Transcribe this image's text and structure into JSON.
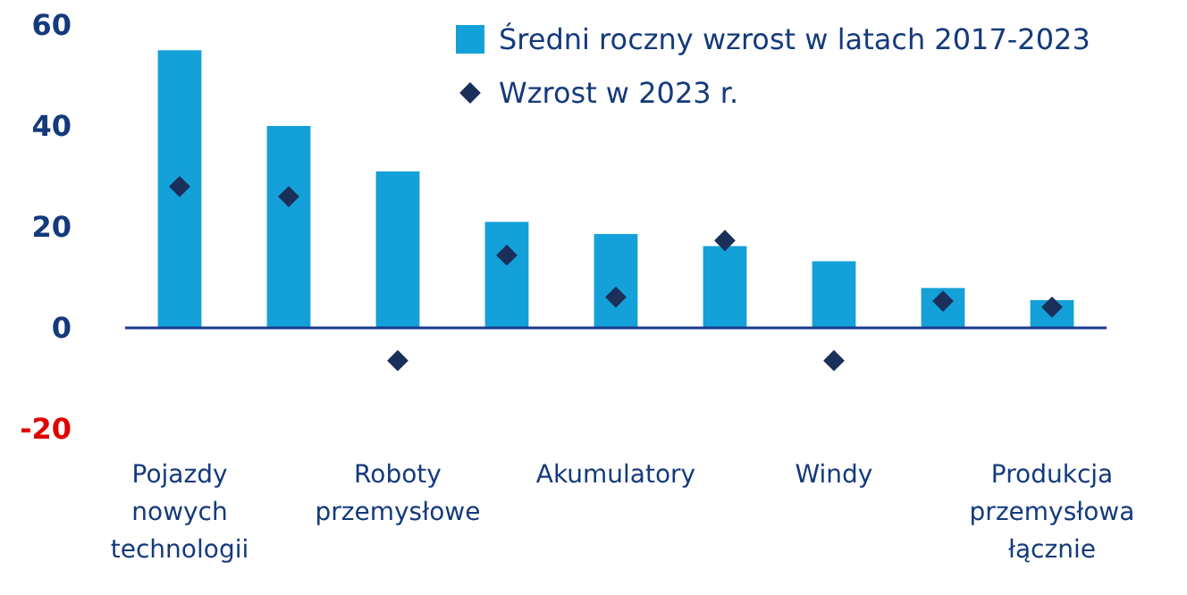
{
  "chart_data": {
    "type": "bar",
    "categories": [
      "Pojazdy nowych technologii",
      null,
      "Roboty przemysłowe",
      null,
      "Akumulatory",
      null,
      "Windy",
      null,
      "Produkcja przemysłowa łącznie"
    ],
    "series": [
      {
        "name": "Średni roczny wzrost w latach 2017-2023",
        "color": "#14a0d8",
        "values": [
          55,
          40,
          31,
          21,
          18.6,
          16.2,
          13.2,
          7.9,
          5.5
        ]
      },
      {
        "name": "Wzrost w 2023 r.",
        "type": "scatter",
        "marker": "diamond",
        "color": "#1a2f5a",
        "values": [
          28,
          26,
          -6.5,
          14.4,
          6.1,
          17.3,
          -6.5,
          5.3,
          4.1
        ]
      }
    ],
    "ylim": [
      -20,
      60
    ],
    "yticks": [
      -20,
      0,
      20,
      40,
      60
    ],
    "grid": false,
    "ref_lines": [
      {
        "axis": "y",
        "value": 0,
        "color": "#1a3a8c"
      }
    ],
    "legend": "top right"
  }
}
